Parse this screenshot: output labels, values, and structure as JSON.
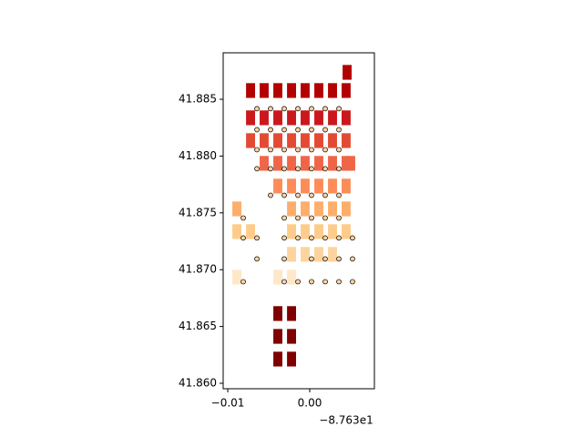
{
  "chart_data": {
    "type": "map",
    "xlim": [
      -87.64056,
      -87.62211
    ],
    "ylim": [
      41.85952,
      41.88909
    ],
    "xticks": [
      {
        "value": -87.64,
        "label": "−0.01"
      },
      {
        "value": -87.63,
        "label": "0.00"
      }
    ],
    "x_offset_label": "−8.763e1",
    "yticks": [
      {
        "value": 41.86,
        "label": "41.860"
      },
      {
        "value": 41.865,
        "label": "41.865"
      },
      {
        "value": 41.87,
        "label": "41.870"
      },
      {
        "value": 41.875,
        "label": "41.875"
      },
      {
        "value": 41.88,
        "label": "41.880"
      },
      {
        "value": 41.885,
        "label": "41.885"
      }
    ],
    "block_size": [
      0.0011,
      0.0013
    ],
    "blocks": [
      [
        -87.63722,
        41.88577,
        "#b30000"
      ],
      [
        -87.63556,
        41.88577,
        "#b30000"
      ],
      [
        -87.63389,
        41.88577,
        "#b30000"
      ],
      [
        -87.63222,
        41.88577,
        "#b30000"
      ],
      [
        -87.63056,
        41.88577,
        "#b30000"
      ],
      [
        -87.62889,
        41.88577,
        "#b30000"
      ],
      [
        -87.62722,
        41.88577,
        "#b30000"
      ],
      [
        -87.62556,
        41.88577,
        "#b30000"
      ],
      [
        -87.62544,
        41.88737,
        "#b30000"
      ],
      [
        -87.63722,
        41.88337,
        "#cb181d"
      ],
      [
        -87.63556,
        41.88337,
        "#cb181d"
      ],
      [
        -87.63389,
        41.88337,
        "#cb181d"
      ],
      [
        -87.63222,
        41.88337,
        "#cb181d"
      ],
      [
        -87.63056,
        41.88337,
        "#cb181d"
      ],
      [
        -87.62889,
        41.88337,
        "#cb181d"
      ],
      [
        -87.62722,
        41.88337,
        "#cb181d"
      ],
      [
        -87.62556,
        41.88337,
        "#cb181d"
      ],
      [
        -87.63722,
        41.88136,
        "#e34a33"
      ],
      [
        -87.63556,
        41.88136,
        "#e34a33"
      ],
      [
        -87.63389,
        41.88136,
        "#e34a33"
      ],
      [
        -87.63222,
        41.88136,
        "#e34a33"
      ],
      [
        -87.63056,
        41.88136,
        "#e34a33"
      ],
      [
        -87.62889,
        41.88136,
        "#e34a33"
      ],
      [
        -87.62722,
        41.88136,
        "#e34a33"
      ],
      [
        -87.62556,
        41.88136,
        "#e34a33"
      ],
      [
        -87.63556,
        41.87936,
        "#ef6548"
      ],
      [
        -87.63389,
        41.87936,
        "#ef6548"
      ],
      [
        -87.63222,
        41.87936,
        "#ef6548"
      ],
      [
        -87.63056,
        41.87936,
        "#ef6548"
      ],
      [
        -87.62889,
        41.87936,
        "#ef6548"
      ],
      [
        -87.62722,
        41.87936,
        "#ef6548"
      ],
      [
        -87.62556,
        41.87936,
        "#ef6548"
      ],
      [
        -87.625,
        41.87936,
        "#ef6548"
      ],
      [
        -87.63389,
        41.87736,
        "#fc8d59"
      ],
      [
        -87.63222,
        41.87736,
        "#fc8d59"
      ],
      [
        -87.63056,
        41.87736,
        "#fc8d59"
      ],
      [
        -87.62889,
        41.87736,
        "#fc8d59"
      ],
      [
        -87.62722,
        41.87736,
        "#fc8d59"
      ],
      [
        -87.62556,
        41.87736,
        "#fc8d59"
      ],
      [
        -87.63889,
        41.87535,
        "#fdae6b"
      ],
      [
        -87.63222,
        41.87535,
        "#fdae6b"
      ],
      [
        -87.63056,
        41.87535,
        "#fdae6b"
      ],
      [
        -87.62889,
        41.87535,
        "#fdae6b"
      ],
      [
        -87.62722,
        41.87535,
        "#fdae6b"
      ],
      [
        -87.62556,
        41.87535,
        "#fdae6b"
      ],
      [
        -87.63889,
        41.87335,
        "#fdcc8a"
      ],
      [
        -87.63722,
        41.87335,
        "#fdcc8a"
      ],
      [
        -87.63222,
        41.87335,
        "#fdcc8a"
      ],
      [
        -87.63056,
        41.87335,
        "#fdcc8a"
      ],
      [
        -87.62889,
        41.87335,
        "#fdcc8a"
      ],
      [
        -87.62722,
        41.87335,
        "#fdcc8a"
      ],
      [
        -87.62556,
        41.87335,
        "#fdcc8a"
      ],
      [
        -87.63222,
        41.87135,
        "#fdd49e"
      ],
      [
        -87.63056,
        41.87135,
        "#fdd49e"
      ],
      [
        -87.62889,
        41.87135,
        "#fdd49e"
      ],
      [
        -87.62722,
        41.87135,
        "#fdd49e"
      ],
      [
        -87.63889,
        41.86934,
        "#fee8c8"
      ],
      [
        -87.63389,
        41.86934,
        "#fee8c8"
      ],
      [
        -87.63222,
        41.86934,
        "#fee8c8"
      ],
      [
        -87.63389,
        41.86614,
        "#7f0000"
      ],
      [
        -87.63222,
        41.86614,
        "#7f0000"
      ],
      [
        -87.63389,
        41.86413,
        "#7f0000"
      ],
      [
        -87.63222,
        41.86413,
        "#7f0000"
      ],
      [
        -87.63389,
        41.86213,
        "#7f0000"
      ],
      [
        -87.63222,
        41.86213,
        "#7f0000"
      ]
    ],
    "point_fill": "#fdd49e",
    "point_edge": "#000000",
    "points": [
      [
        -87.63644,
        41.88417
      ],
      [
        -87.63478,
        41.88417
      ],
      [
        -87.63311,
        41.88417
      ],
      [
        -87.63144,
        41.88417
      ],
      [
        -87.62978,
        41.88417
      ],
      [
        -87.62811,
        41.88417
      ],
      [
        -87.62644,
        41.88417
      ],
      [
        -87.63644,
        41.88232
      ],
      [
        -87.63478,
        41.88232
      ],
      [
        -87.63311,
        41.88232
      ],
      [
        -87.63144,
        41.88232
      ],
      [
        -87.62978,
        41.88232
      ],
      [
        -87.62811,
        41.88232
      ],
      [
        -87.62644,
        41.88232
      ],
      [
        -87.63644,
        41.88056
      ],
      [
        -87.63478,
        41.88056
      ],
      [
        -87.63311,
        41.88056
      ],
      [
        -87.63144,
        41.88056
      ],
      [
        -87.62978,
        41.88056
      ],
      [
        -87.62811,
        41.88056
      ],
      [
        -87.62644,
        41.88056
      ],
      [
        -87.63644,
        41.87888
      ],
      [
        -87.63478,
        41.87888
      ],
      [
        -87.63311,
        41.87888
      ],
      [
        -87.63144,
        41.87888
      ],
      [
        -87.62978,
        41.87888
      ],
      [
        -87.62811,
        41.87888
      ],
      [
        -87.62644,
        41.87888
      ],
      [
        -87.63478,
        41.87655
      ],
      [
        -87.63311,
        41.87655
      ],
      [
        -87.63144,
        41.87655
      ],
      [
        -87.62978,
        41.87655
      ],
      [
        -87.62811,
        41.87655
      ],
      [
        -87.62644,
        41.87655
      ],
      [
        -87.63811,
        41.87455
      ],
      [
        -87.63311,
        41.87455
      ],
      [
        -87.63144,
        41.87455
      ],
      [
        -87.62978,
        41.87455
      ],
      [
        -87.62811,
        41.87455
      ],
      [
        -87.62644,
        41.87455
      ],
      [
        -87.63811,
        41.87279
      ],
      [
        -87.63644,
        41.87279
      ],
      [
        -87.63311,
        41.87279
      ],
      [
        -87.63144,
        41.87279
      ],
      [
        -87.62978,
        41.87279
      ],
      [
        -87.62811,
        41.87279
      ],
      [
        -87.62644,
        41.87279
      ],
      [
        -87.62478,
        41.87279
      ],
      [
        -87.63644,
        41.87095
      ],
      [
        -87.63311,
        41.87095
      ],
      [
        -87.62978,
        41.87095
      ],
      [
        -87.62811,
        41.87095
      ],
      [
        -87.62644,
        41.87095
      ],
      [
        -87.62478,
        41.87095
      ],
      [
        -87.63811,
        41.86894
      ],
      [
        -87.63311,
        41.86894
      ],
      [
        -87.63144,
        41.86894
      ],
      [
        -87.62978,
        41.86894
      ],
      [
        -87.62811,
        41.86894
      ],
      [
        -87.62644,
        41.86894
      ],
      [
        -87.62478,
        41.86894
      ]
    ]
  }
}
